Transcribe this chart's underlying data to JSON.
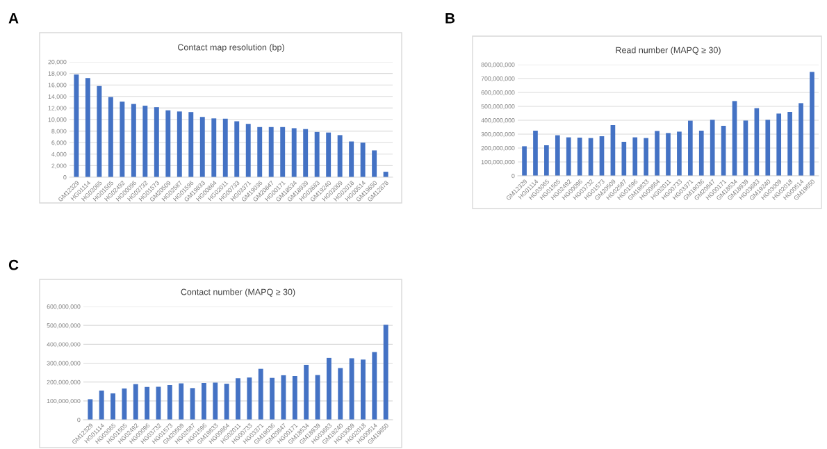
{
  "chart_data": [
    {
      "type": "bar",
      "title": "Contact map resolution (bp)",
      "annotations": [
        "A"
      ],
      "color": "#4472c4",
      "grid": "y",
      "categories": [
        "GM12329",
        "HG01114",
        "HG03065",
        "HG01505",
        "HG02492",
        "HG00096",
        "HG03732",
        "HG01573",
        "GM20509",
        "HG02587",
        "HG01596",
        "GM19833",
        "HG00864",
        "HG02011",
        "HG00733",
        "HG03371",
        "GM19036",
        "GM20847",
        "HG00171",
        "GM18534",
        "GM18939",
        "HG03683",
        "GM19240",
        "HG03009",
        "HG02018",
        "HG00514",
        "GM19650",
        "GM12878"
      ],
      "values": [
        17800,
        17200,
        15800,
        13900,
        13100,
        12700,
        12400,
        12150,
        11600,
        11400,
        11300,
        10450,
        10200,
        10150,
        9700,
        9250,
        8700,
        8700,
        8700,
        8500,
        8350,
        7850,
        7750,
        7300,
        6200,
        6000,
        4650,
        950
      ],
      "ylim": [
        0,
        20000
      ],
      "yticks": [
        {
          "value": 0,
          "label": "0"
        },
        {
          "value": 2000,
          "label": "2,000"
        },
        {
          "value": 4000,
          "label": "4,000"
        },
        {
          "value": 6000,
          "label": "6,000"
        },
        {
          "value": 8000,
          "label": "8,000"
        },
        {
          "value": 10000,
          "label": "10,000"
        },
        {
          "value": 12000,
          "label": "12,000"
        },
        {
          "value": 14000,
          "label": "14,000"
        },
        {
          "value": 16000,
          "label": "16,000"
        },
        {
          "value": 18000,
          "label": "18,000"
        },
        {
          "value": 20000,
          "label": "20,000"
        }
      ]
    },
    {
      "type": "bar",
      "title": "Read number (MAPQ ≥ 30)",
      "annotations": [
        "B"
      ],
      "color": "#4472c4",
      "grid": "y",
      "categories": [
        "GM12329",
        "HG01114",
        "HG03065",
        "HG01505",
        "HG02492",
        "HG00096",
        "HG03732",
        "HG01573",
        "GM20509",
        "HG02587",
        "HG01596",
        "GM19833",
        "HG00864",
        "HG02011",
        "HG00733",
        "HG03371",
        "GM19036",
        "GM20847",
        "HG00171",
        "GM18534",
        "GM18939",
        "HG03683",
        "GM19240",
        "HG03009",
        "HG02018",
        "HG00514",
        "GM19650"
      ],
      "values": [
        213000000,
        325000000,
        220000000,
        292000000,
        277000000,
        275000000,
        272000000,
        285000000,
        365000000,
        245000000,
        277000000,
        272000000,
        323000000,
        308000000,
        318000000,
        397000000,
        325000000,
        403000000,
        360000000,
        538000000,
        398000000,
        487000000,
        403000000,
        448000000,
        460000000,
        523000000,
        747000000
      ],
      "ylim": [
        0,
        800000000
      ],
      "yticks": [
        {
          "value": 0,
          "label": "0"
        },
        {
          "value": 100000000,
          "label": "100,000,000"
        },
        {
          "value": 200000000,
          "label": "200,000,000"
        },
        {
          "value": 300000000,
          "label": "300,000,000"
        },
        {
          "value": 400000000,
          "label": "400,000,000"
        },
        {
          "value": 500000000,
          "label": "500,000,000"
        },
        {
          "value": 600000000,
          "label": "600,000,000"
        },
        {
          "value": 700000000,
          "label": "700,000,000"
        },
        {
          "value": 800000000,
          "label": "800,000,000"
        }
      ]
    },
    {
      "type": "bar",
      "title": "Contact number (MAPQ ≥ 30)",
      "annotations": [
        "C"
      ],
      "color": "#4472c4",
      "grid": "y",
      "categories": [
        "GM12329",
        "HG01114",
        "HG03065",
        "HG01505",
        "HG02492",
        "HG00096",
        "HG03732",
        "HG01573",
        "GM20509",
        "HG02587",
        "HG01596",
        "GM19833",
        "HG00864",
        "HG02011",
        "HG00733",
        "HG03371",
        "GM19036",
        "GM20847",
        "HG00171",
        "GM18534",
        "GM18939",
        "HG03683",
        "GM19240",
        "HG03009",
        "HG02018",
        "HG00514",
        "GM19650"
      ],
      "values": [
        109000000,
        155000000,
        140000000,
        166000000,
        189000000,
        174000000,
        175000000,
        184000000,
        193000000,
        168000000,
        195000000,
        197000000,
        191000000,
        220000000,
        224000000,
        270000000,
        222000000,
        236000000,
        232000000,
        291000000,
        237000000,
        328000000,
        274000000,
        326000000,
        319000000,
        359000000,
        503000000
      ],
      "ylim": [
        0,
        600000000
      ],
      "yticks": [
        {
          "value": 0,
          "label": "0"
        },
        {
          "value": 100000000,
          "label": "100,000,000"
        },
        {
          "value": 200000000,
          "label": "200,000,000"
        },
        {
          "value": 300000000,
          "label": "300,000,000"
        },
        {
          "value": 400000000,
          "label": "400,000,000"
        },
        {
          "value": 500000000,
          "label": "500,000,000"
        },
        {
          "value": 600000000,
          "label": "600,000,000"
        }
      ]
    }
  ]
}
